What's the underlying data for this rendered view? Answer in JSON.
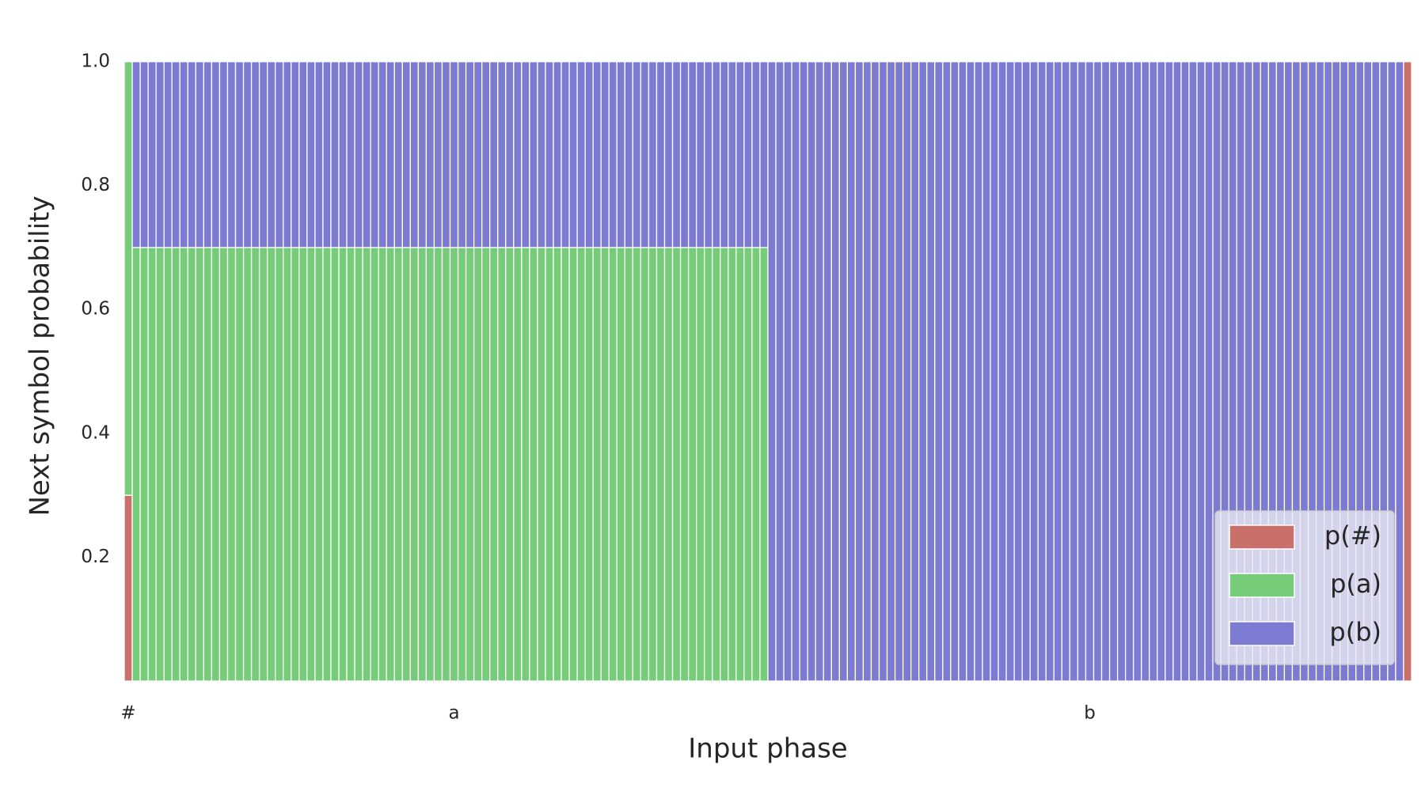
{
  "chart_data": {
    "type": "stacked_bar",
    "xlabel": "Input phase",
    "ylabel": "Next symbol probability",
    "ylim": [
      0,
      1
    ],
    "yticks": [
      0.2,
      0.4,
      0.6,
      0.8,
      {
        "value": 1,
        "label": "1.0"
      }
    ],
    "grid": false,
    "legend": "lower right",
    "categories": [
      "#",
      null,
      null,
      null,
      null,
      null,
      null,
      null,
      null,
      null,
      null,
      null,
      null,
      null,
      null,
      null,
      null,
      null,
      null,
      null,
      null,
      null,
      null,
      null,
      null,
      null,
      null,
      null,
      null,
      null,
      null,
      null,
      null,
      null,
      null,
      null,
      null,
      null,
      null,
      null,
      null,
      "a",
      null,
      null,
      null,
      null,
      null,
      null,
      null,
      null,
      null,
      null,
      null,
      null,
      null,
      null,
      null,
      null,
      null,
      null,
      null,
      null,
      null,
      null,
      null,
      null,
      null,
      null,
      null,
      null,
      null,
      null,
      null,
      null,
      null,
      null,
      null,
      null,
      null,
      null,
      null,
      null,
      null,
      null,
      null,
      null,
      null,
      null,
      null,
      null,
      null,
      null,
      null,
      null,
      null,
      null,
      null,
      null,
      null,
      null,
      null,
      null,
      null,
      null,
      null,
      null,
      null,
      null,
      null,
      null,
      null,
      null,
      null,
      null,
      null,
      null,
      null,
      null,
      null,
      null,
      null,
      "b",
      null,
      null,
      null,
      null,
      null,
      null,
      null,
      null,
      null,
      null,
      null,
      null,
      null,
      null,
      null,
      null,
      null,
      null,
      null,
      null,
      null,
      null,
      null,
      null,
      null,
      null,
      null,
      null,
      null,
      null,
      null,
      null,
      null,
      null,
      null,
      null,
      null,
      null,
      null,
      null
    ],
    "series": [
      {
        "name": "p(#)",
        "color": "#c9706a",
        "values": [
          0.3,
          0,
          0,
          0,
          0,
          0,
          0,
          0,
          0,
          0,
          0,
          0,
          0,
          0,
          0,
          0,
          0,
          0,
          0,
          0,
          0,
          0,
          0,
          0,
          0,
          0,
          0,
          0,
          0,
          0,
          0,
          0,
          0,
          0,
          0,
          0,
          0,
          0,
          0,
          0,
          0,
          0,
          0,
          0,
          0,
          0,
          0,
          0,
          0,
          0,
          0,
          0,
          0,
          0,
          0,
          0,
          0,
          0,
          0,
          0,
          0,
          0,
          0,
          0,
          0,
          0,
          0,
          0,
          0,
          0,
          0,
          0,
          0,
          0,
          0,
          0,
          0,
          0,
          0,
          0,
          0,
          0,
          0,
          0,
          0,
          0,
          0,
          0,
          0,
          0,
          0,
          0,
          0,
          0,
          0,
          0,
          0,
          0,
          0,
          0,
          0,
          0,
          0,
          0,
          0,
          0,
          0,
          0,
          0,
          0,
          0,
          0,
          0,
          0,
          0,
          0,
          0,
          0,
          0,
          0,
          0,
          0,
          0,
          0,
          0,
          0,
          0,
          0,
          0,
          0,
          0,
          0,
          0,
          0,
          0,
          0,
          0,
          0,
          0,
          0,
          0,
          0,
          0,
          0,
          0,
          0,
          0,
          0,
          0,
          0,
          0,
          0,
          0,
          0,
          0,
          0,
          0,
          0,
          0,
          0,
          0,
          1
        ]
      },
      {
        "name": "p(a)",
        "color": "#77cc7a",
        "values": [
          0.7,
          0.7,
          0.7,
          0.7,
          0.7,
          0.7,
          0.7,
          0.7,
          0.7,
          0.7,
          0.7,
          0.7,
          0.7,
          0.7,
          0.7,
          0.7,
          0.7,
          0.7,
          0.7,
          0.7,
          0.7,
          0.7,
          0.7,
          0.7,
          0.7,
          0.7,
          0.7,
          0.7,
          0.7,
          0.7,
          0.7,
          0.7,
          0.7,
          0.7,
          0.7,
          0.7,
          0.7,
          0.7,
          0.7,
          0.7,
          0.7,
          0.7,
          0.7,
          0.7,
          0.7,
          0.7,
          0.7,
          0.7,
          0.7,
          0.7,
          0.7,
          0.7,
          0.7,
          0.7,
          0.7,
          0.7,
          0.7,
          0.7,
          0.7,
          0.7,
          0.7,
          0.7,
          0.7,
          0.7,
          0.7,
          0.7,
          0.7,
          0.7,
          0.7,
          0.7,
          0.7,
          0.7,
          0.7,
          0.7,
          0.7,
          0.7,
          0.7,
          0.7,
          0.7,
          0.7,
          0.7,
          0,
          0,
          0,
          0,
          0,
          0,
          0,
          0,
          0,
          0,
          0,
          0,
          0,
          0,
          0,
          0,
          0,
          0,
          0,
          0,
          0,
          0,
          0,
          0,
          0,
          0,
          0,
          0,
          0,
          0,
          0,
          0,
          0,
          0,
          0,
          0,
          0,
          0,
          0,
          0,
          0,
          0,
          0,
          0,
          0,
          0,
          0,
          0,
          0,
          0,
          0,
          0,
          0,
          0,
          0,
          0,
          0,
          0,
          0,
          0,
          0,
          0,
          0,
          0,
          0,
          0,
          0,
          0,
          0,
          0,
          0,
          0,
          0,
          0,
          0,
          0,
          0,
          0,
          0,
          0,
          0
        ]
      },
      {
        "name": "p(b)",
        "color": "#7d7bd1",
        "values": [
          0,
          0.3,
          0.3,
          0.3,
          0.3,
          0.3,
          0.3,
          0.3,
          0.3,
          0.3,
          0.3,
          0.3,
          0.3,
          0.3,
          0.3,
          0.3,
          0.3,
          0.3,
          0.3,
          0.3,
          0.3,
          0.3,
          0.3,
          0.3,
          0.3,
          0.3,
          0.3,
          0.3,
          0.3,
          0.3,
          0.3,
          0.3,
          0.3,
          0.3,
          0.3,
          0.3,
          0.3,
          0.3,
          0.3,
          0.3,
          0.3,
          0.3,
          0.3,
          0.3,
          0.3,
          0.3,
          0.3,
          0.3,
          0.3,
          0.3,
          0.3,
          0.3,
          0.3,
          0.3,
          0.3,
          0.3,
          0.3,
          0.3,
          0.3,
          0.3,
          0.3,
          0.3,
          0.3,
          0.3,
          0.3,
          0.3,
          0.3,
          0.3,
          0.3,
          0.3,
          0.3,
          0.3,
          0.3,
          0.3,
          0.3,
          0.3,
          0.3,
          0.3,
          0.3,
          0.3,
          0.3,
          1,
          1,
          1,
          1,
          1,
          1,
          1,
          1,
          1,
          1,
          1,
          1,
          1,
          1,
          1,
          1,
          1,
          1,
          1,
          1,
          1,
          1,
          1,
          1,
          1,
          1,
          1,
          1,
          1,
          1,
          1,
          1,
          1,
          1,
          1,
          1,
          1,
          1,
          1,
          1,
          1,
          1,
          1,
          1,
          1,
          1,
          1,
          1,
          1,
          1,
          1,
          1,
          1,
          1,
          1,
          1,
          1,
          1,
          1,
          1,
          1,
          1,
          1,
          1,
          1,
          1,
          1,
          1,
          1,
          1,
          1,
          1,
          1,
          1,
          1,
          1,
          1,
          1,
          1,
          1,
          0
        ]
      }
    ]
  }
}
